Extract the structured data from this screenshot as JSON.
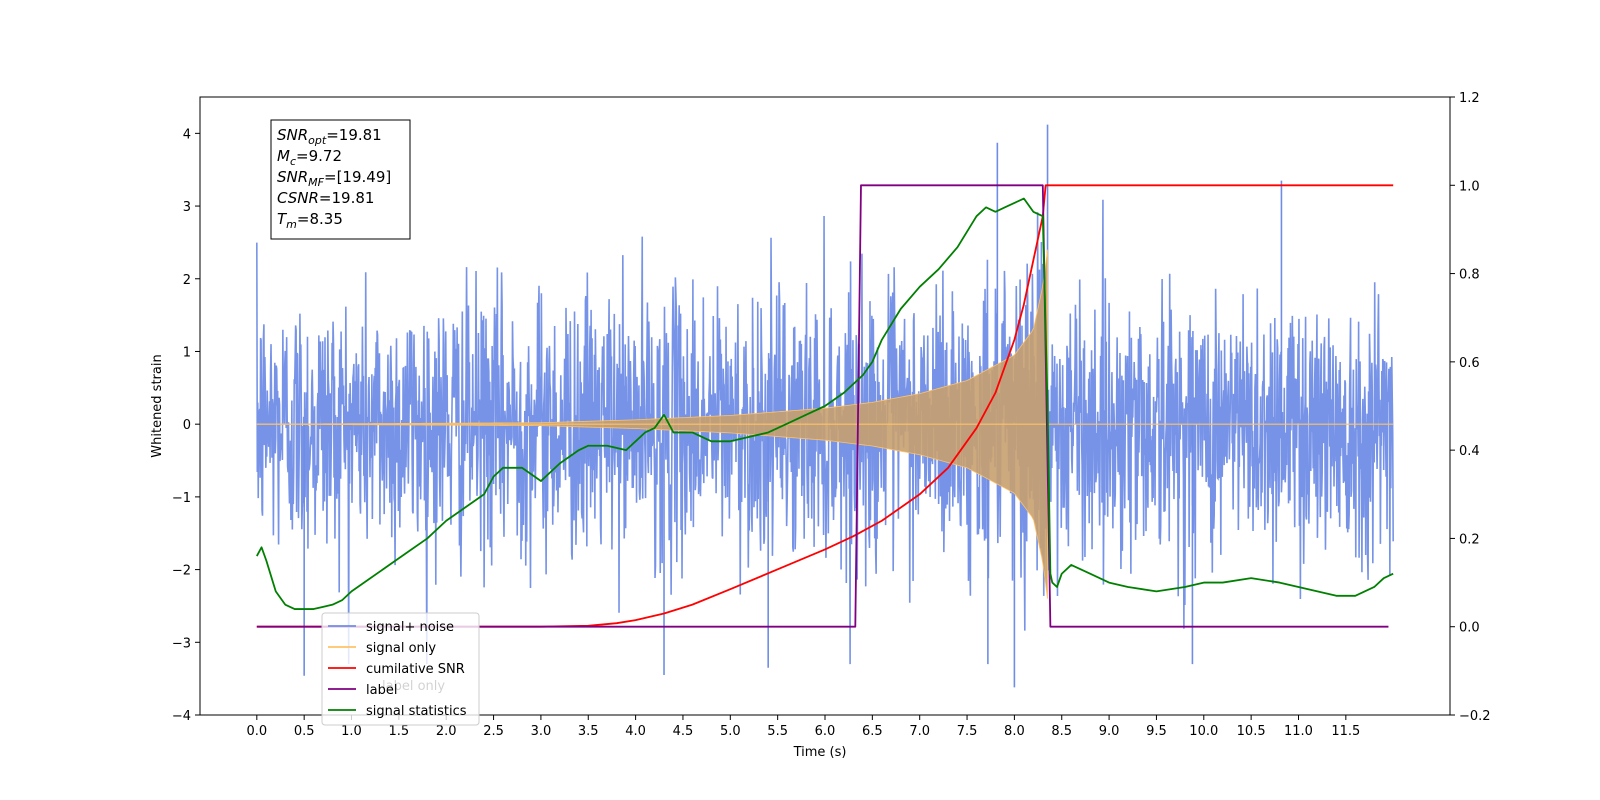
{
  "chart_data": {
    "type": "line",
    "xlabel": "Time (s)",
    "ylabel": "Whitened strain",
    "xlim": [
      -0.6,
      12.6
    ],
    "ylim": [
      -4,
      4.5
    ],
    "y2lim": [
      -0.2,
      1.2
    ],
    "x_ticks": [
      "0.0",
      "0.5",
      "1.0",
      "1.5",
      "2.0",
      "2.5",
      "3.0",
      "3.5",
      "4.0",
      "4.5",
      "5.0",
      "5.5",
      "6.0",
      "6.5",
      "7.0",
      "7.5",
      "8.0",
      "8.5",
      "9.0",
      "9.5",
      "10.0",
      "10.5",
      "11.0",
      "11.5"
    ],
    "y_ticks": [
      "−4",
      "−3",
      "−2",
      "−1",
      "0",
      "1",
      "2",
      "3",
      "4"
    ],
    "y2_ticks": [
      "−0.2",
      "0.0",
      "0.2",
      "0.4",
      "0.6",
      "0.8",
      "1.0",
      "1.2"
    ],
    "annotation": {
      "lines": [
        {
          "base": "SNR",
          "sub": "opt",
          "rest": "=19.81"
        },
        {
          "base": "M",
          "sub": "c",
          "rest": "=9.72"
        },
        {
          "base": "SNR",
          "sub": "MF",
          "rest": "=[19.49]"
        },
        {
          "base": "CSNR",
          "sub": "",
          "rest": "=19.81"
        },
        {
          "base": "T",
          "sub": "m",
          "rest": "=8.35"
        }
      ]
    },
    "legend": {
      "position": "lower-left",
      "entries": [
        {
          "label": "signal+ noise",
          "color": "#6f8de6"
        },
        {
          "label": "signal only",
          "color": "#ffc266"
        },
        {
          "label": "cumilative SNR",
          "color": "#ff0000"
        },
        {
          "label": "label",
          "color": "#800080"
        },
        {
          "label": "signal statistics",
          "color": "#008000"
        }
      ],
      "hidden_text": "label only"
    },
    "series": [
      {
        "name": "signal+ noise",
        "axis": "left",
        "color": "#6f8de6",
        "x_range": [
          0.0,
          12.0
        ],
        "noise_std": 0.9,
        "spikes": [
          {
            "x": 8.35,
            "y": 4.12
          },
          {
            "x": 7.82,
            "y": 3.87
          },
          {
            "x": 10.82,
            "y": 3.35
          },
          {
            "x": 8.0,
            "y": -3.62
          },
          {
            "x": 0.5,
            "y": -3.46
          },
          {
            "x": 4.3,
            "y": -3.45
          },
          {
            "x": 5.4,
            "y": -3.35
          },
          {
            "x": 9.88,
            "y": -3.3
          },
          {
            "x": 7.72,
            "y": -3.3
          }
        ]
      },
      {
        "name": "signal only",
        "axis": "left",
        "color": "#ffc266",
        "envelope": {
          "x": [
            0.0,
            3.0,
            4.0,
            5.0,
            6.0,
            6.5,
            7.0,
            7.5,
            8.0,
            8.2,
            8.3,
            8.35
          ],
          "amp": [
            0.0,
            0.02,
            0.06,
            0.12,
            0.22,
            0.3,
            0.42,
            0.6,
            0.95,
            1.3,
            1.9,
            2.4
          ]
        },
        "merger": 8.35
      },
      {
        "name": "cumilative SNR",
        "axis": "right",
        "color": "#ff0000",
        "x": [
          0.0,
          3.0,
          3.5,
          3.8,
          4.0,
          4.3,
          4.6,
          5.0,
          5.5,
          6.0,
          6.3,
          6.6,
          7.0,
          7.3,
          7.6,
          7.8,
          8.0,
          8.1,
          8.2,
          8.3,
          8.33,
          8.38,
          12.0
        ],
        "y": [
          0.0,
          0.0,
          0.002,
          0.008,
          0.015,
          0.03,
          0.05,
          0.085,
          0.13,
          0.175,
          0.205,
          0.24,
          0.3,
          0.36,
          0.45,
          0.53,
          0.65,
          0.73,
          0.83,
          0.93,
          1.0,
          1.0,
          1.0
        ]
      },
      {
        "name": "label",
        "axis": "right",
        "color": "#800080",
        "x": [
          0.0,
          6.32,
          6.38,
          8.3,
          8.38,
          11.95
        ],
        "y": [
          0.0,
          0.0,
          1.0,
          1.0,
          0.0,
          0.0
        ]
      },
      {
        "name": "signal statistics",
        "axis": "right",
        "color": "#008000",
        "x": [
          0.0,
          0.05,
          0.1,
          0.2,
          0.3,
          0.4,
          0.5,
          0.6,
          0.7,
          0.8,
          0.9,
          1.0,
          1.2,
          1.4,
          1.6,
          1.8,
          2.0,
          2.2,
          2.4,
          2.5,
          2.6,
          2.8,
          3.0,
          3.2,
          3.4,
          3.5,
          3.7,
          3.9,
          4.0,
          4.1,
          4.2,
          4.3,
          4.4,
          4.6,
          4.8,
          5.0,
          5.2,
          5.4,
          5.6,
          5.8,
          6.0,
          6.2,
          6.4,
          6.5,
          6.6,
          6.8,
          7.0,
          7.2,
          7.4,
          7.6,
          7.7,
          7.8,
          7.9,
          8.0,
          8.1,
          8.2,
          8.3,
          8.35,
          8.38,
          8.4,
          8.45,
          8.5,
          8.6,
          8.8,
          9.0,
          9.2,
          9.5,
          9.8,
          10.0,
          10.2,
          10.5,
          10.8,
          11.0,
          11.2,
          11.4,
          11.6,
          11.8,
          11.9,
          12.0
        ],
        "y": [
          0.16,
          0.18,
          0.15,
          0.08,
          0.05,
          0.04,
          0.04,
          0.04,
          0.045,
          0.05,
          0.06,
          0.08,
          0.11,
          0.14,
          0.17,
          0.2,
          0.24,
          0.27,
          0.3,
          0.34,
          0.36,
          0.36,
          0.33,
          0.37,
          0.4,
          0.41,
          0.41,
          0.4,
          0.42,
          0.44,
          0.45,
          0.48,
          0.44,
          0.44,
          0.42,
          0.42,
          0.43,
          0.44,
          0.46,
          0.48,
          0.5,
          0.53,
          0.57,
          0.6,
          0.65,
          0.72,
          0.77,
          0.81,
          0.86,
          0.93,
          0.95,
          0.94,
          0.95,
          0.96,
          0.97,
          0.94,
          0.93,
          0.5,
          0.12,
          0.1,
          0.09,
          0.12,
          0.14,
          0.12,
          0.1,
          0.09,
          0.08,
          0.09,
          0.1,
          0.1,
          0.11,
          0.1,
          0.09,
          0.08,
          0.07,
          0.07,
          0.09,
          0.11,
          0.12
        ]
      }
    ]
  }
}
